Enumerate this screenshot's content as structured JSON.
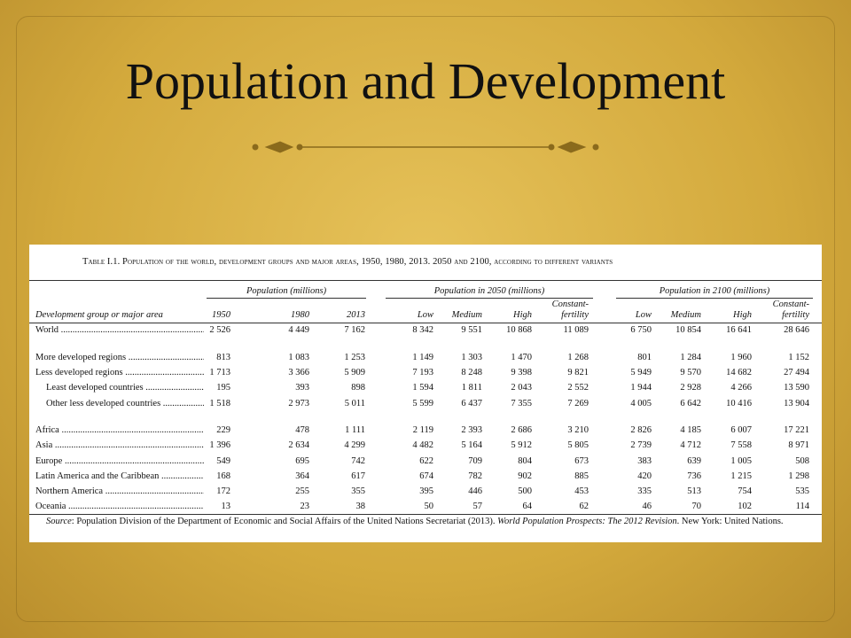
{
  "header": {
    "title": "Population and Development"
  },
  "table": {
    "caption": "Table I.1. Population of the world, development groups and major areas, 1950, 1980, 2013. 2050 and 2100, according to different variants",
    "groups": [
      "Population (millions)",
      "Population in 2050 (millions)",
      "Population in 2100 (millions)"
    ],
    "row_header": "Development group or major area",
    "columns": [
      "1950",
      "1980",
      "2013",
      "Low",
      "Medium",
      "High",
      "Constant-fertility",
      "Low",
      "Medium",
      "High",
      "Constant-fertility"
    ],
    "rows": [
      [
        "World",
        "2 526",
        "4 449",
        "7 162",
        "8 342",
        "9 551",
        "10 868",
        "11 089",
        "6 750",
        "10 854",
        "16 641",
        "28 646"
      ],
      [
        "More developed regions",
        "813",
        "1 083",
        "1 253",
        "1 149",
        "1 303",
        "1 470",
        "1 268",
        "801",
        "1 284",
        "1 960",
        "1 152"
      ],
      [
        "Less developed regions",
        "1 713",
        "3 366",
        "5 909",
        "7 193",
        "8 248",
        "9 398",
        "9 821",
        "5 949",
        "9 570",
        "14 682",
        "27 494"
      ],
      [
        "Least developed countries",
        "195",
        "393",
        "898",
        "1 594",
        "1 811",
        "2 043",
        "2 552",
        "1 944",
        "2 928",
        "4 266",
        "13 590"
      ],
      [
        "Other less developed countries",
        "1 518",
        "2 973",
        "5 011",
        "5 599",
        "6 437",
        "7 355",
        "7 269",
        "4 005",
        "6 642",
        "10 416",
        "13 904"
      ],
      [
        "Africa",
        "229",
        "478",
        "1 111",
        "2 119",
        "2 393",
        "2 686",
        "3 210",
        "2 826",
        "4 185",
        "6 007",
        "17 221"
      ],
      [
        "Asia",
        "1 396",
        "2 634",
        "4 299",
        "4 482",
        "5 164",
        "5 912",
        "5 805",
        "2 739",
        "4 712",
        "7 558",
        "8 971"
      ],
      [
        "Europe",
        "549",
        "695",
        "742",
        "622",
        "709",
        "804",
        "673",
        "383",
        "639",
        "1 005",
        "508"
      ],
      [
        "Latin America and the Caribbean",
        "168",
        "364",
        "617",
        "674",
        "782",
        "902",
        "885",
        "420",
        "736",
        "1 215",
        "1 298"
      ],
      [
        "Northern America",
        "172",
        "255",
        "355",
        "395",
        "446",
        "500",
        "453",
        "335",
        "513",
        "754",
        "535"
      ],
      [
        "Oceania",
        "13",
        "23",
        "38",
        "50",
        "57",
        "64",
        "62",
        "46",
        "70",
        "102",
        "114"
      ]
    ],
    "source": {
      "label": "Source",
      "text1": ": Population Division of the Department of Economic and Social Affairs of the United Nations Secretariat (2013). ",
      "title": "World Population Prospects: The 2012 Revision",
      "text2": ". New York: United Nations."
    }
  }
}
